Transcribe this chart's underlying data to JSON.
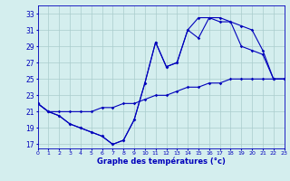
{
  "title": "Graphe des températures (°c)",
  "background_color": "#d4eeee",
  "grid_color": "#aacccc",
  "line_color": "#0000bb",
  "xlim": [
    0,
    23
  ],
  "ylim": [
    16.5,
    34.0
  ],
  "xtick_labels": [
    "0",
    "1",
    "2",
    "3",
    "4",
    "5",
    "6",
    "7",
    "8",
    "9",
    "10",
    "11",
    "12",
    "13",
    "14",
    "15",
    "16",
    "17",
    "18",
    "19",
    "20",
    "21",
    "22",
    "23"
  ],
  "ytick_values": [
    17,
    19,
    21,
    23,
    25,
    27,
    29,
    31,
    33
  ],
  "line1_x": [
    0,
    1,
    2,
    3,
    4,
    5,
    6,
    7,
    8,
    9,
    10,
    11,
    12,
    13,
    14,
    15,
    16,
    17,
    18,
    19,
    20,
    21,
    22,
    23
  ],
  "line1_y": [
    22.0,
    21.0,
    20.5,
    19.5,
    19.0,
    18.5,
    18.0,
    17.0,
    17.5,
    20.0,
    24.5,
    29.5,
    26.5,
    27.0,
    31.0,
    30.0,
    32.5,
    32.5,
    32.0,
    31.5,
    31.0,
    28.5,
    25.0,
    25.0
  ],
  "line2_x": [
    0,
    1,
    2,
    3,
    4,
    5,
    6,
    7,
    8,
    9,
    10,
    11,
    12,
    13,
    14,
    15,
    16,
    17,
    18,
    19,
    20,
    21,
    22,
    23
  ],
  "line2_y": [
    22.0,
    21.0,
    20.5,
    19.5,
    19.0,
    18.5,
    18.0,
    17.0,
    17.5,
    20.0,
    24.5,
    29.5,
    26.5,
    27.0,
    31.0,
    32.5,
    32.5,
    32.0,
    32.0,
    29.0,
    28.5,
    28.0,
    25.0,
    25.0
  ],
  "line3_x": [
    0,
    1,
    2,
    3,
    4,
    5,
    6,
    7,
    8,
    9,
    10,
    11,
    12,
    13,
    14,
    15,
    16,
    17,
    18,
    19,
    20,
    21,
    22,
    23
  ],
  "line3_y": [
    22.0,
    21.0,
    21.0,
    21.0,
    21.0,
    21.0,
    21.5,
    21.5,
    22.0,
    22.0,
    22.5,
    23.0,
    23.0,
    23.5,
    24.0,
    24.0,
    24.5,
    24.5,
    25.0,
    25.0,
    25.0,
    25.0,
    25.0,
    25.0
  ]
}
